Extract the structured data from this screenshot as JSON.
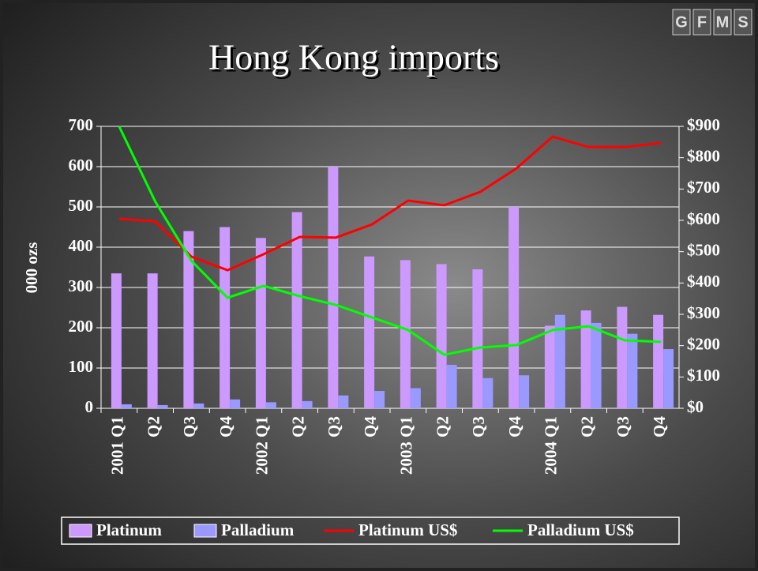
{
  "chart_data": {
    "type": "bar-line",
    "title": "Hong Kong imports",
    "logo": [
      "G",
      "F",
      "M",
      "S"
    ],
    "y_label": "000 ozs",
    "categories": [
      "2001 Q1",
      "Q2",
      "Q3",
      "Q4",
      "2002 Q1",
      "Q2",
      "Q3",
      "Q4",
      "2003 Q1",
      "Q2",
      "Q3",
      "Q4",
      "2004 Q1",
      "Q2",
      "Q3",
      "Q4"
    ],
    "series": [
      {
        "name": "Platinum",
        "kind": "bar",
        "color": "#cc99ff",
        "values": [
          335,
          335,
          440,
          450,
          423,
          487,
          600,
          377,
          368,
          358,
          345,
          500,
          205,
          243,
          252,
          232
        ]
      },
      {
        "name": "Palladium",
        "kind": "bar",
        "color": "#9999ff",
        "values": [
          10,
          8,
          12,
          22,
          15,
          18,
          32,
          43,
          50,
          108,
          75,
          82,
          232,
          212,
          185,
          147
        ]
      },
      {
        "name": "Platinum US$",
        "kind": "line",
        "axis": "y2",
        "color": "#ff0000",
        "values": [
          605,
          597,
          484,
          441,
          492,
          547,
          545,
          587,
          663,
          648,
          691,
          766,
          867,
          834,
          834,
          847
        ]
      },
      {
        "name": "Palladium US$",
        "kind": "line",
        "axis": "y2",
        "color": "#00ff00",
        "values": [
          900,
          660,
          471,
          353,
          391,
          358,
          330,
          290,
          250,
          171,
          194,
          202,
          250,
          262,
          217,
          212
        ]
      }
    ],
    "ylim": [
      0,
      700
    ],
    "yticks": [
      0,
      100,
      200,
      300,
      400,
      500,
      600,
      700
    ],
    "y2lim": [
      0,
      900
    ],
    "y2ticks": [
      {
        "value": 0,
        "label": "$0"
      },
      {
        "value": 100,
        "label": "$100"
      },
      {
        "value": 200,
        "label": "$200"
      },
      {
        "value": 300,
        "label": "$300"
      },
      {
        "value": 400,
        "label": "$400"
      },
      {
        "value": 500,
        "label": "$500"
      },
      {
        "value": 600,
        "label": "$600"
      },
      {
        "value": 700,
        "label": "$700"
      },
      {
        "value": 800,
        "label": "$800"
      },
      {
        "value": 900,
        "label": "$900"
      }
    ],
    "grid": true,
    "legend": "bottom"
  }
}
